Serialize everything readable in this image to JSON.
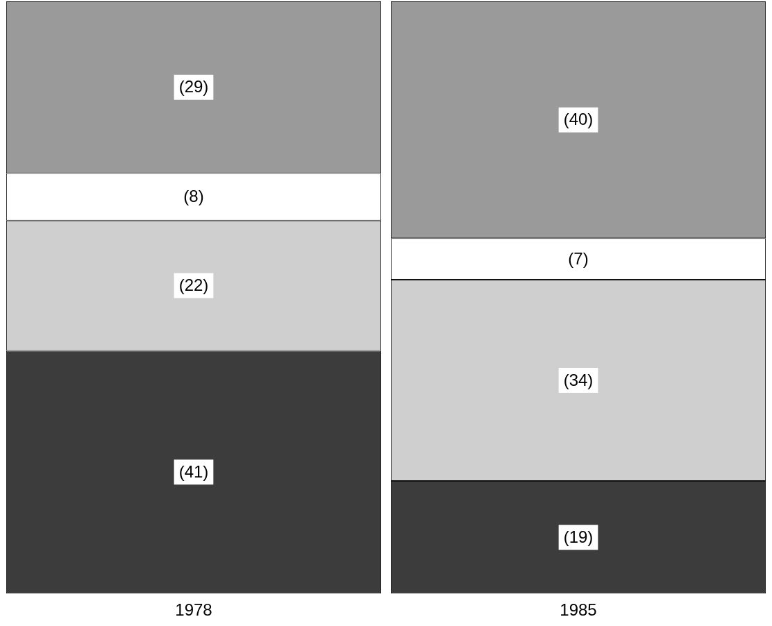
{
  "chart_data": {
    "type": "bar",
    "stacked": true,
    "categories": [
      "1978",
      "1985"
    ],
    "series": [
      {
        "color": "#3c3c3c",
        "values": [
          41,
          19
        ],
        "value_labels": [
          "(41)",
          "(19)"
        ]
      },
      {
        "color": "#cfcfcf",
        "values": [
          22,
          34
        ],
        "value_labels": [
          "(22)",
          "(34)"
        ]
      },
      {
        "color": "#ffffff",
        "values": [
          8,
          7
        ],
        "value_labels": [
          "(8)",
          "(7)"
        ]
      },
      {
        "color": "#9a9a9a",
        "values": [
          29,
          40
        ],
        "value_labels": [
          "(29)",
          "(40)"
        ]
      }
    ],
    "legend": false,
    "grid": false,
    "tick_labels": "x"
  }
}
